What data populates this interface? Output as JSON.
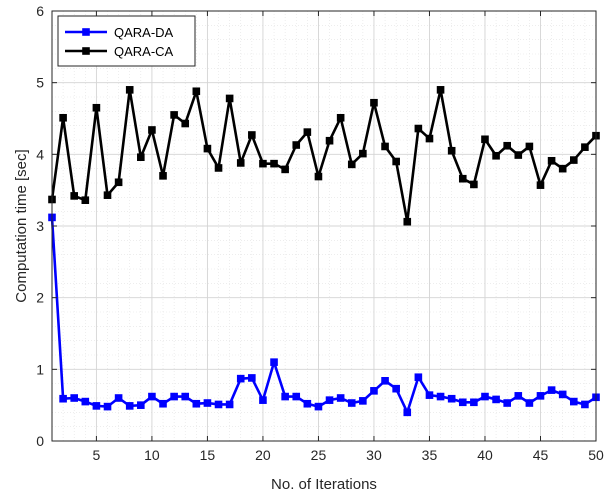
{
  "chart_data": {
    "type": "line",
    "title": "",
    "xlabel": "No. of Iterations",
    "ylabel": "Computation time [sec]",
    "xlim": [
      1,
      50
    ],
    "ylim": [
      0,
      6
    ],
    "xticks": [
      5,
      10,
      15,
      20,
      25,
      30,
      35,
      40,
      45,
      50
    ],
    "yticks": [
      0,
      1,
      2,
      3,
      4,
      5,
      6
    ],
    "grid": "major-and-minor",
    "legend_position": "top-left",
    "x": [
      1,
      2,
      3,
      4,
      5,
      6,
      7,
      8,
      9,
      10,
      11,
      12,
      13,
      14,
      15,
      16,
      17,
      18,
      19,
      20,
      21,
      22,
      23,
      24,
      25,
      26,
      27,
      28,
      29,
      30,
      31,
      32,
      33,
      34,
      35,
      36,
      37,
      38,
      39,
      40,
      41,
      42,
      43,
      44,
      45,
      46,
      47,
      48,
      49,
      50
    ],
    "series": [
      {
        "name": "QARA-DA",
        "color": "#0000ff",
        "marker": "square",
        "values": [
          3.12,
          0.59,
          0.6,
          0.55,
          0.49,
          0.48,
          0.6,
          0.49,
          0.5,
          0.62,
          0.52,
          0.62,
          0.62,
          0.52,
          0.53,
          0.51,
          0.51,
          0.87,
          0.88,
          0.57,
          1.1,
          0.62,
          0.62,
          0.52,
          0.48,
          0.57,
          0.6,
          0.53,
          0.56,
          0.7,
          0.84,
          0.73,
          0.4,
          0.89,
          0.64,
          0.62,
          0.59,
          0.54,
          0.54,
          0.62,
          0.58,
          0.53,
          0.63,
          0.53,
          0.63,
          0.71,
          0.65,
          0.55,
          0.51,
          0.61
        ]
      },
      {
        "name": "QARA-CA",
        "color": "#000000",
        "marker": "square",
        "values": [
          3.37,
          4.51,
          3.42,
          3.36,
          4.65,
          3.43,
          3.61,
          4.9,
          3.96,
          4.34,
          3.7,
          4.55,
          4.43,
          4.88,
          4.08,
          3.81,
          4.78,
          3.88,
          4.27,
          3.87,
          3.87,
          3.79,
          4.13,
          4.31,
          3.69,
          4.19,
          4.51,
          3.86,
          4.01,
          4.72,
          4.11,
          3.9,
          3.06,
          4.36,
          4.22,
          4.9,
          4.05,
          3.66,
          3.58,
          4.21,
          3.98,
          4.12,
          3.99,
          4.11,
          3.57,
          3.91,
          3.8,
          3.92,
          4.1,
          4.26
        ]
      }
    ]
  }
}
